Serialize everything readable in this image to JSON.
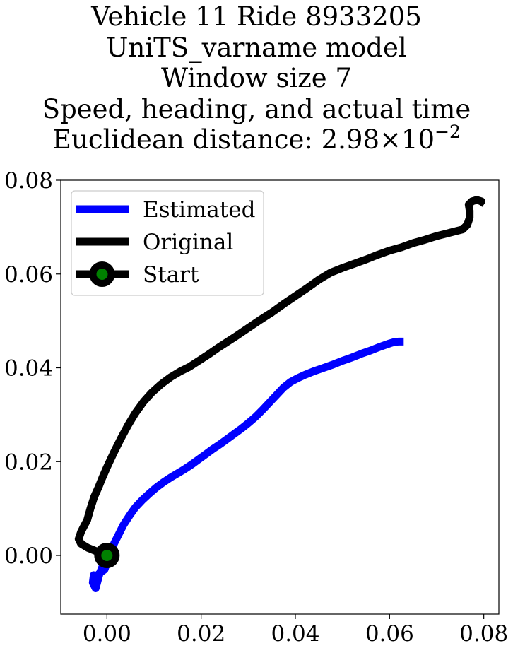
{
  "chart_data": {
    "type": "line",
    "title_lines": [
      "Vehicle 11 Ride 8933205",
      "UniTS_varname model",
      "Window size 7",
      "Speed, heading, and actual time"
    ],
    "title_metric": "Euclidean distance: ",
    "title_value_mantissa": "2.98",
    "title_value_times": "×",
    "title_value_base": "10",
    "title_value_exponent": "−2",
    "xlim": [
      -0.0098,
      0.0832
    ],
    "ylim": [
      -0.0125,
      0.08
    ],
    "x_ticks": [
      0.0,
      0.02,
      0.04,
      0.06,
      0.08
    ],
    "x_tick_labels": [
      "0.00",
      "0.02",
      "0.04",
      "0.06",
      "0.08"
    ],
    "y_ticks": [
      0.0,
      0.02,
      0.04,
      0.06,
      0.08
    ],
    "y_tick_labels": [
      "0.00",
      "0.02",
      "0.04",
      "0.06",
      "0.08"
    ],
    "grid": false,
    "legend": {
      "placement": "top-left",
      "entries": [
        "Estimated",
        "Original",
        "Start"
      ]
    },
    "series": [
      {
        "name": "Estimated",
        "color": "#0000ff",
        "x": [
          0.0,
          -0.0005,
          -0.001,
          -0.0016,
          -0.002,
          -0.0024,
          -0.003,
          -0.0028,
          -0.0022,
          -0.0018,
          -0.0012,
          -0.0005,
          0.0,
          0.0008,
          0.0015,
          0.0025,
          0.0035,
          0.0048,
          0.006,
          0.0075,
          0.009,
          0.0105,
          0.012,
          0.0135,
          0.015,
          0.0165,
          0.018,
          0.0195,
          0.021,
          0.0225,
          0.024,
          0.0255,
          0.027,
          0.0285,
          0.03,
          0.0315,
          0.033,
          0.0345,
          0.036,
          0.0375,
          0.039,
          0.0405,
          0.042,
          0.044,
          0.046,
          0.048,
          0.05,
          0.052,
          0.054,
          0.056,
          0.058,
          0.06,
          0.061,
          0.062,
          0.063
        ],
        "y": [
          0.0,
          -0.0012,
          -0.0025,
          -0.004,
          -0.0055,
          -0.007,
          -0.0058,
          -0.0042,
          -0.0048,
          -0.004,
          -0.0035,
          -0.003,
          -0.0015,
          0.0005,
          0.0025,
          0.0045,
          0.0065,
          0.0085,
          0.0102,
          0.0118,
          0.0132,
          0.0145,
          0.0156,
          0.0166,
          0.0175,
          0.0184,
          0.0194,
          0.0205,
          0.0216,
          0.0227,
          0.0237,
          0.0248,
          0.0259,
          0.027,
          0.0282,
          0.0295,
          0.031,
          0.0326,
          0.0342,
          0.0358,
          0.037,
          0.0378,
          0.0385,
          0.0393,
          0.04,
          0.0407,
          0.0415,
          0.0422,
          0.043,
          0.0437,
          0.0445,
          0.0452,
          0.0455,
          0.0456,
          0.0456
        ]
      },
      {
        "name": "Original",
        "color": "#000000",
        "x": [
          0.0,
          -0.002,
          -0.004,
          -0.0055,
          -0.006,
          -0.0055,
          -0.005,
          -0.0042,
          -0.0035,
          -0.0027,
          -0.0018,
          -0.001,
          0.0,
          0.0015,
          0.003,
          0.0045,
          0.006,
          0.0078,
          0.0095,
          0.0115,
          0.0135,
          0.0155,
          0.0175,
          0.0195,
          0.0215,
          0.0235,
          0.0255,
          0.0275,
          0.03,
          0.0325,
          0.035,
          0.0375,
          0.04,
          0.0425,
          0.045,
          0.0475,
          0.05,
          0.0525,
          0.055,
          0.0575,
          0.06,
          0.0625,
          0.065,
          0.0675,
          0.07,
          0.072,
          0.0735,
          0.0755,
          0.0765,
          0.077,
          0.077,
          0.0768,
          0.0775,
          0.0785,
          0.0795,
          0.079
        ],
        "y": [
          0.0,
          0.0008,
          0.0016,
          0.0025,
          0.0035,
          0.005,
          0.006,
          0.0075,
          0.01,
          0.0125,
          0.0145,
          0.0165,
          0.0188,
          0.022,
          0.025,
          0.0278,
          0.0303,
          0.0328,
          0.0347,
          0.0365,
          0.038,
          0.0392,
          0.0402,
          0.0415,
          0.0428,
          0.0442,
          0.0455,
          0.0468,
          0.0485,
          0.0502,
          0.0518,
          0.0536,
          0.0553,
          0.057,
          0.0588,
          0.0603,
          0.0613,
          0.0622,
          0.0631,
          0.0641,
          0.065,
          0.0657,
          0.0666,
          0.0673,
          0.0681,
          0.0686,
          0.069,
          0.0695,
          0.0705,
          0.072,
          0.0735,
          0.0748,
          0.0755,
          0.0758,
          0.0755,
          0.0748
        ]
      }
    ],
    "start_marker": {
      "x": 0.0,
      "y": 0.0,
      "face_color": "#008000",
      "edge_color": "#000000"
    }
  }
}
